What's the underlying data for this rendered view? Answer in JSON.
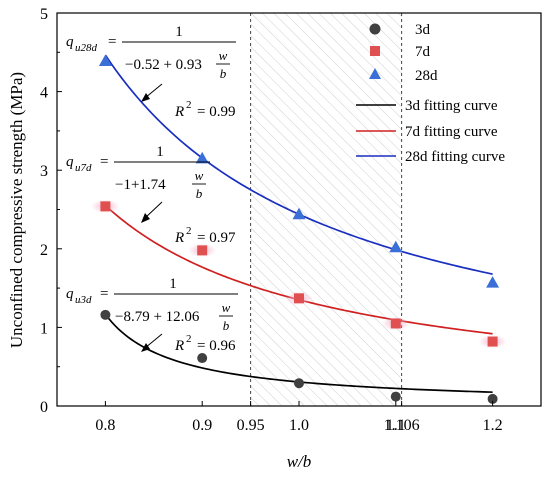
{
  "chart_data": {
    "type": "scatter",
    "xlabel": "w/b",
    "ylabel": "Unconfined compressive strength (MPa)",
    "xlim": [
      0.75,
      1.25
    ],
    "ylim": [
      0,
      5
    ],
    "x_ticks": [
      "0.8",
      "0.9",
      "0.95",
      "1.0",
      "1.1",
      "1.106",
      "1.2"
    ],
    "x_tick_values": [
      0.8,
      0.9,
      0.95,
      1.0,
      1.1,
      1.106,
      1.2
    ],
    "y_ticks": [
      "0",
      "1",
      "2",
      "3",
      "4",
      "5"
    ],
    "y_tick_values": [
      0,
      1,
      2,
      3,
      4,
      5
    ],
    "shaded_region": [
      0.95,
      1.106
    ],
    "series": [
      {
        "name": "3d",
        "marker": "circle",
        "color": "#404040",
        "x": [
          0.8,
          0.9,
          1.0,
          1.1,
          1.2
        ],
        "y": [
          1.16,
          0.61,
          0.29,
          0.12,
          0.09
        ],
        "fit_name": "3d fitting curve",
        "fit_color": "#000000",
        "fit_coeffs": [
          -8.79,
          12.06
        ]
      },
      {
        "name": "7d",
        "marker": "square",
        "color": "#e05050",
        "x": [
          0.8,
          0.9,
          1.0,
          1.1,
          1.2
        ],
        "y": [
          2.54,
          1.98,
          1.37,
          1.05,
          0.82
        ],
        "fit_name": "7d fitting curve",
        "fit_color": "#d02020",
        "fit_coeffs": [
          -1,
          1.74
        ]
      },
      {
        "name": "28d",
        "marker": "triangle",
        "color": "#3a6fd8",
        "x": [
          0.8,
          0.9,
          1.0,
          1.1,
          1.2
        ],
        "y": [
          4.39,
          3.15,
          2.44,
          2.02,
          1.57
        ],
        "fit_name": "28d fitting curve",
        "fit_color": "#1a2fc0",
        "fit_coeffs": [
          -0.52,
          0.93
        ]
      }
    ],
    "equations": [
      {
        "q_main": "q",
        "q_sub": "u28d",
        "equals": "=",
        "numerator": "1",
        "denominator": "−0.52 + 0.93",
        "frac_top": "w",
        "frac_bottom": "b",
        "r2_label": "R",
        "r2_sup": "2",
        "r2_value": "= 0.99"
      },
      {
        "q_main": "q",
        "q_sub": "u7d",
        "equals": "=",
        "numerator": "1",
        "denominator": "−1+1.74",
        "frac_top": "w",
        "frac_bottom": "b",
        "r2_label": "R",
        "r2_sup": "2",
        "r2_value": "= 0.97"
      },
      {
        "q_main": "q",
        "q_sub": "u3d",
        "equals": "=",
        "numerator": "1",
        "denominator": "−8.79 + 12.06",
        "frac_top": "w",
        "frac_bottom": "b",
        "r2_label": "R",
        "r2_sup": "2",
        "r2_value": "= 0.96"
      }
    ]
  }
}
